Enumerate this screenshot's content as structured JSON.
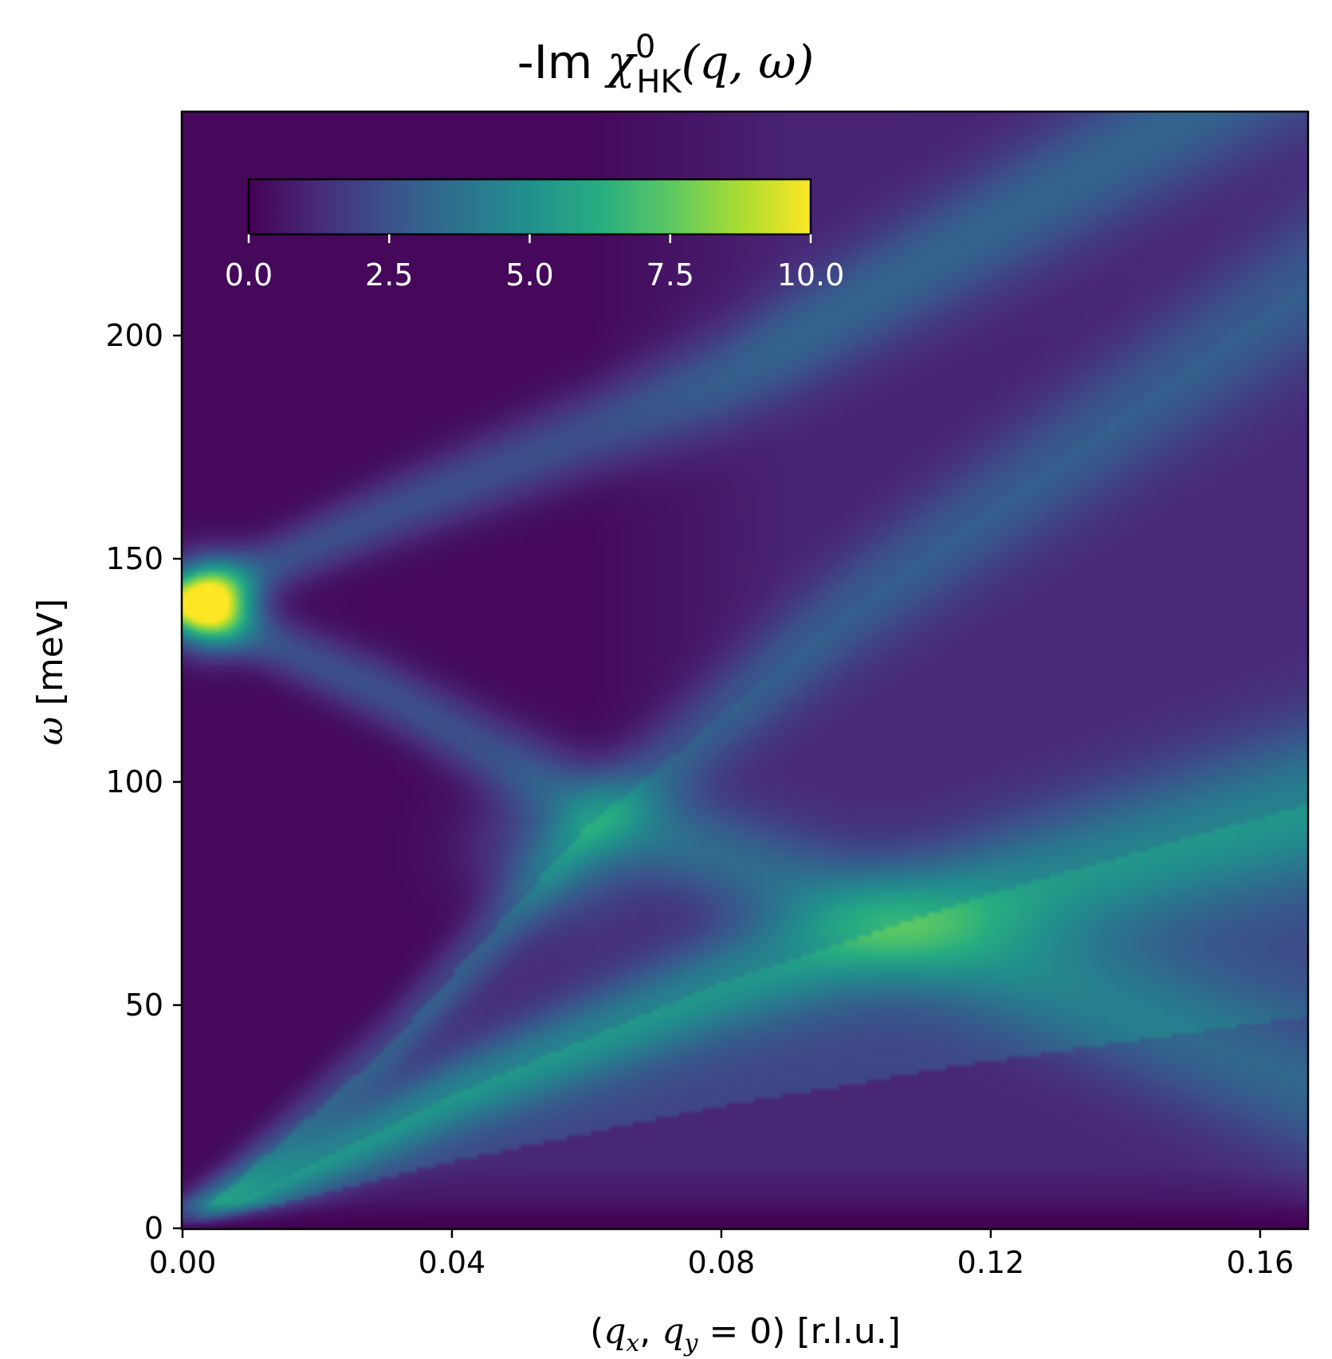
{
  "chart_data": {
    "type": "heatmap",
    "title": {
      "prefix": "-Im ",
      "chi": "χ",
      "sup": "0",
      "sub": "HK",
      "args": "(q, ω)"
    },
    "xlabel": {
      "open": "(",
      "qx": "q",
      "qx_sub": "x",
      "sep": ", ",
      "qy": "q",
      "qy_sub": "y",
      "eq": " = 0) ",
      "unit": "[r.l.u.]"
    },
    "ylabel": {
      "omega": "ω",
      "unit": " [meV]"
    },
    "xlim": [
      0.0,
      0.167
    ],
    "ylim": [
      0,
      250
    ],
    "xticks": [
      0.0,
      0.04,
      0.08,
      0.12,
      0.16
    ],
    "xtick_labels": [
      "0.00",
      "0.04",
      "0.08",
      "0.12",
      "0.16"
    ],
    "yticks": [
      0,
      50,
      100,
      150,
      200
    ],
    "ytick_labels": [
      "0",
      "50",
      "100",
      "150",
      "200"
    ],
    "colormap": "viridis",
    "colorbar": {
      "placement": "top-left inset, horizontal",
      "range": [
        0.0,
        10.0
      ],
      "ticks": [
        0.0,
        2.5,
        5.0,
        7.5,
        10.0
      ],
      "tick_labels": [
        "0.0",
        "2.5",
        "5.0",
        "7.5",
        "10.0"
      ]
    },
    "grid": false,
    "features": [
      {
        "name": "peak",
        "q": 0.004,
        "omega": 140,
        "value": 10.0
      },
      {
        "name": "upper-left branch",
        "points": [
          [
            0.0,
            140
          ],
          [
            0.03,
            160
          ],
          [
            0.08,
            190
          ],
          [
            0.15,
            250
          ]
        ],
        "value": 2.6
      },
      {
        "name": "lower-left branch",
        "points": [
          [
            0.0,
            140
          ],
          [
            0.03,
            120
          ],
          [
            0.06,
            95
          ],
          [
            0.12,
            60
          ]
        ],
        "value": 2.6
      },
      {
        "name": "acoustic-like steep branch",
        "points": [
          [
            0.0,
            0
          ],
          [
            0.03,
            40
          ],
          [
            0.06,
            90
          ],
          [
            0.1,
            140
          ],
          [
            0.165,
            210
          ]
        ],
        "value": 2.2
      },
      {
        "name": "lower linear branch",
        "points": [
          [
            0.0,
            0
          ],
          [
            0.04,
            30
          ],
          [
            0.08,
            55
          ],
          [
            0.12,
            75
          ],
          [
            0.167,
            95
          ]
        ],
        "value": 3.6
      },
      {
        "name": "crossing spot",
        "q": 0.055,
        "omega": 85,
        "value": 3.5
      }
    ]
  }
}
